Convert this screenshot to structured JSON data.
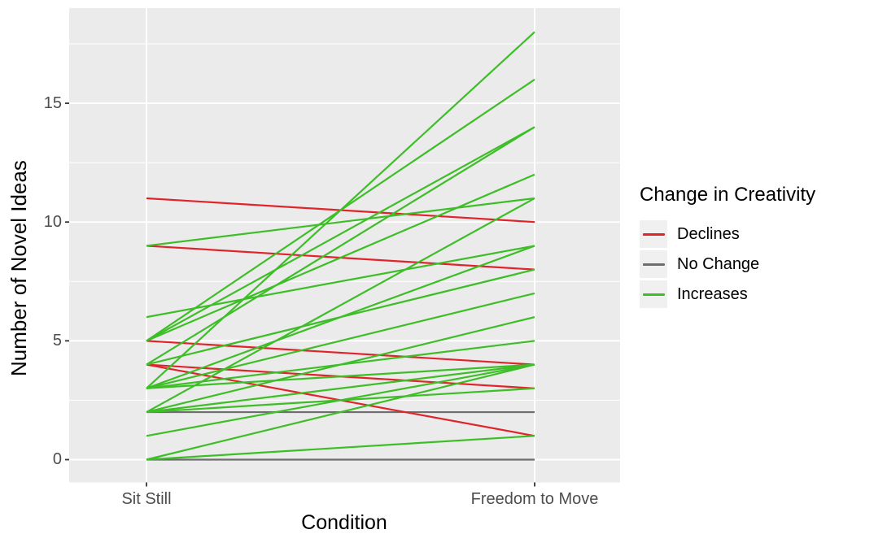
{
  "change_colors": {
    "decline": "#e0242b",
    "none": "#6e6e6e",
    "increase": "#3dbe27"
  },
  "panel": {
    "background": "#ebebeb",
    "gridline_color": "#ffffff"
  },
  "axes": {
    "y": {
      "label": "Number of Novel Ideas",
      "ticks": [
        0,
        5,
        10,
        15
      ]
    },
    "x": {
      "label": "Condition",
      "categories": [
        "Sit Still",
        "Freedom to Move"
      ]
    }
  },
  "legend": {
    "title": "Change in Creativity",
    "entries": [
      {
        "label": "Declines",
        "change": "decline"
      },
      {
        "label": "No Change",
        "change": "none"
      },
      {
        "label": "Increases",
        "change": "increase"
      }
    ]
  },
  "chart_data": {
    "type": "line",
    "subtype": "paired-slopegraph",
    "title": "",
    "xlabel": "Condition",
    "ylabel": "Number of Novel Ideas",
    "x_categories": [
      "Sit Still",
      "Freedom to Move"
    ],
    "ylim": [
      0,
      18
    ],
    "yticks": [
      0,
      5,
      10,
      15
    ],
    "grid": true,
    "legend_position": "right",
    "pairs": [
      {
        "sit_still": 11,
        "freedom_to_move": 10,
        "change": "decline"
      },
      {
        "sit_still": 9,
        "freedom_to_move": 8,
        "change": "decline"
      },
      {
        "sit_still": 5,
        "freedom_to_move": 4,
        "change": "decline"
      },
      {
        "sit_still": 4,
        "freedom_to_move": 3,
        "change": "decline"
      },
      {
        "sit_still": 4,
        "freedom_to_move": 1,
        "change": "decline"
      },
      {
        "sit_still": 2,
        "freedom_to_move": 2,
        "change": "none"
      },
      {
        "sit_still": 0,
        "freedom_to_move": 0,
        "change": "none"
      },
      {
        "sit_still": 9,
        "freedom_to_move": 11,
        "change": "increase"
      },
      {
        "sit_still": 6,
        "freedom_to_move": 9,
        "change": "increase"
      },
      {
        "sit_still": 5,
        "freedom_to_move": 16,
        "change": "increase"
      },
      {
        "sit_still": 5,
        "freedom_to_move": 14,
        "change": "increase"
      },
      {
        "sit_still": 5,
        "freedom_to_move": 12,
        "change": "increase"
      },
      {
        "sit_still": 4,
        "freedom_to_move": 14,
        "change": "increase"
      },
      {
        "sit_still": 4,
        "freedom_to_move": 8,
        "change": "increase"
      },
      {
        "sit_still": 3,
        "freedom_to_move": 18,
        "change": "increase"
      },
      {
        "sit_still": 3,
        "freedom_to_move": 9,
        "change": "increase"
      },
      {
        "sit_still": 3,
        "freedom_to_move": 7,
        "change": "increase"
      },
      {
        "sit_still": 3,
        "freedom_to_move": 5,
        "change": "increase"
      },
      {
        "sit_still": 3,
        "freedom_to_move": 4,
        "change": "increase"
      },
      {
        "sit_still": 2,
        "freedom_to_move": 11,
        "change": "increase"
      },
      {
        "sit_still": 2,
        "freedom_to_move": 6,
        "change": "increase"
      },
      {
        "sit_still": 2,
        "freedom_to_move": 4,
        "change": "increase"
      },
      {
        "sit_still": 2,
        "freedom_to_move": 3,
        "change": "increase"
      },
      {
        "sit_still": 1,
        "freedom_to_move": 4,
        "change": "increase"
      },
      {
        "sit_still": 0,
        "freedom_to_move": 4,
        "change": "increase"
      },
      {
        "sit_still": 0,
        "freedom_to_move": 1,
        "change": "increase"
      }
    ]
  }
}
